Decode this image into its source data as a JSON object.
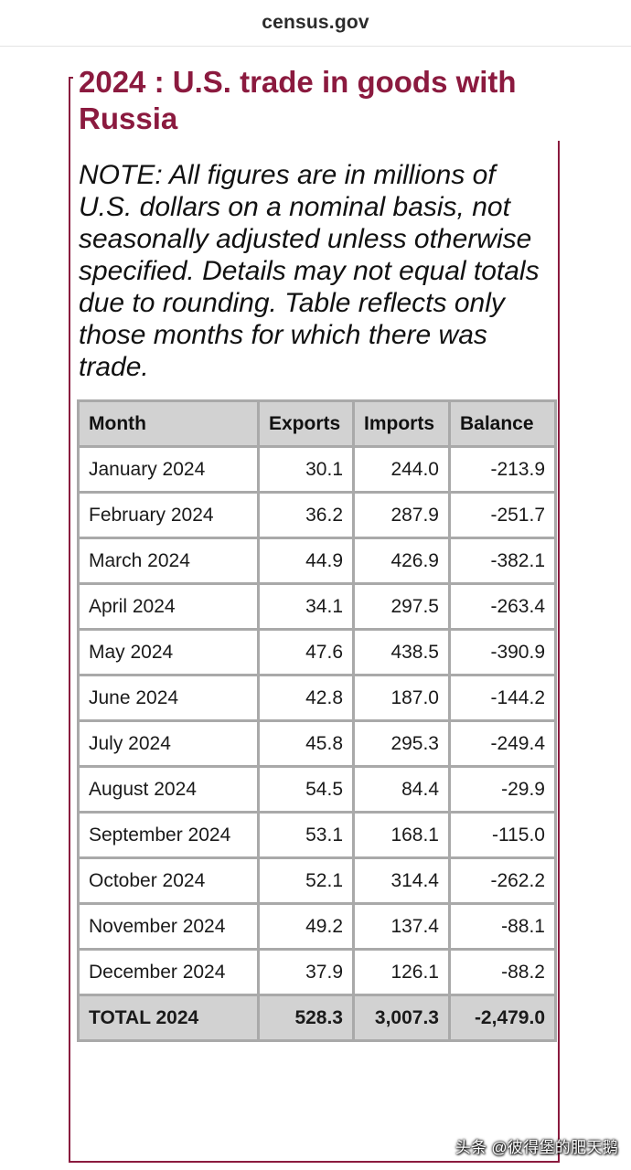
{
  "browser": {
    "url": "census.gov"
  },
  "title": "2024 : U.S. trade in goods with Russia",
  "note": "NOTE: All figures are in millions of U.S. dollars on a nominal basis, not seasonally adjusted unless otherwise specified. Details may not equal totals due to rounding. Table reflects only those months for which there was trade.",
  "table": {
    "columns": [
      "Month",
      "Exports",
      "Imports",
      "Balance"
    ],
    "rows": [
      [
        "January 2024",
        "30.1",
        "244.0",
        "-213.9"
      ],
      [
        "February 2024",
        "36.2",
        "287.9",
        "-251.7"
      ],
      [
        "March 2024",
        "44.9",
        "426.9",
        "-382.1"
      ],
      [
        "April 2024",
        "34.1",
        "297.5",
        "-263.4"
      ],
      [
        "May 2024",
        "47.6",
        "438.5",
        "-390.9"
      ],
      [
        "June 2024",
        "42.8",
        "187.0",
        "-144.2"
      ],
      [
        "July 2024",
        "45.8",
        "295.3",
        "-249.4"
      ],
      [
        "August 2024",
        "54.5",
        "84.4",
        "-29.9"
      ],
      [
        "September 2024",
        "53.1",
        "168.1",
        "-115.0"
      ],
      [
        "October 2024",
        "52.1",
        "314.4",
        "-262.2"
      ],
      [
        "November 2024",
        "49.2",
        "137.4",
        "-88.1"
      ],
      [
        "December 2024",
        "37.9",
        "126.1",
        "-88.2"
      ]
    ],
    "total": [
      "TOTAL 2024",
      "528.3",
      "3,007.3",
      "-2,479.0"
    ]
  },
  "watermark": "头条 @彼得堡的肥天鹅",
  "colors": {
    "title": "#8b1a3f",
    "border": "#8a1a3e",
    "header_bg": "#d2d2d2",
    "cell_border": "#a9a9a9"
  }
}
